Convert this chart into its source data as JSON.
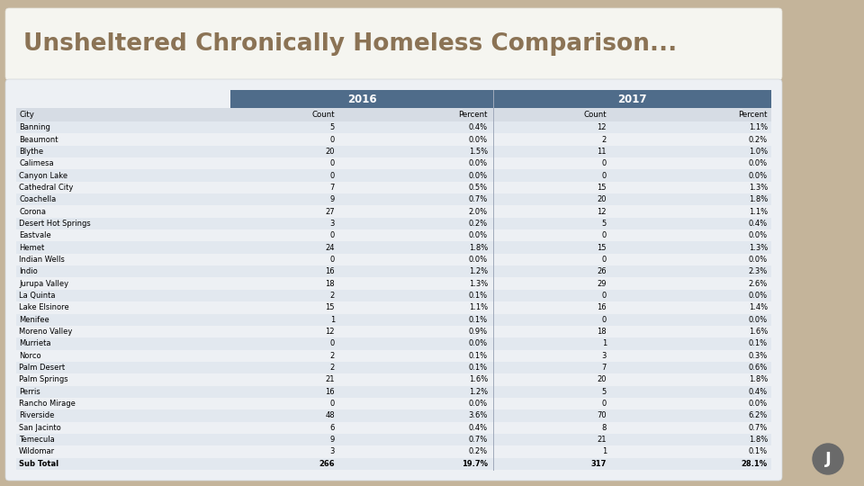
{
  "title": "Unsheltered Chronically Homeless Comparison...",
  "title_color": "#8B7355",
  "background_outer": "#C4B49A",
  "background_inner": "#FFFFFF",
  "table_bg": "#D0D8E2",
  "header_bg": "#4F6C8A",
  "header_text_color": "#FFFFFF",
  "year_headers": [
    "2016",
    "2017"
  ],
  "rows": [
    [
      "Banning",
      "5",
      "0.4%",
      "12",
      "1.1%"
    ],
    [
      "Beaumont",
      "0",
      "0.0%",
      "2",
      "0.2%"
    ],
    [
      "Blythe",
      "20",
      "1.5%",
      "11",
      "1.0%"
    ],
    [
      "Calimesa",
      "0",
      "0.0%",
      "0",
      "0.0%"
    ],
    [
      "Canyon Lake",
      "0",
      "0.0%",
      "0",
      "0.0%"
    ],
    [
      "Cathedral City",
      "7",
      "0.5%",
      "15",
      "1.3%"
    ],
    [
      "Coachella",
      "9",
      "0.7%",
      "20",
      "1.8%"
    ],
    [
      "Corona",
      "27",
      "2.0%",
      "12",
      "1.1%"
    ],
    [
      "Desert Hot Springs",
      "3",
      "0.2%",
      "5",
      "0.4%"
    ],
    [
      "Eastvale",
      "0",
      "0.0%",
      "0",
      "0.0%"
    ],
    [
      "Hemet",
      "24",
      "1.8%",
      "15",
      "1.3%"
    ],
    [
      "Indian Wells",
      "0",
      "0.0%",
      "0",
      "0.0%"
    ],
    [
      "Indio",
      "16",
      "1.2%",
      "26",
      "2.3%"
    ],
    [
      "Jurupa Valley",
      "18",
      "1.3%",
      "29",
      "2.6%"
    ],
    [
      "La Quinta",
      "2",
      "0.1%",
      "0",
      "0.0%"
    ],
    [
      "Lake Elsinore",
      "15",
      "1.1%",
      "16",
      "1.4%"
    ],
    [
      "Menifee",
      "1",
      "0.1%",
      "0",
      "0.0%"
    ],
    [
      "Moreno Valley",
      "12",
      "0.9%",
      "18",
      "1.6%"
    ],
    [
      "Murrieta",
      "0",
      "0.0%",
      "1",
      "0.1%"
    ],
    [
      "Norco",
      "2",
      "0.1%",
      "3",
      "0.3%"
    ],
    [
      "Palm Desert",
      "2",
      "0.1%",
      "7",
      "0.6%"
    ],
    [
      "Palm Springs",
      "21",
      "1.6%",
      "20",
      "1.8%"
    ],
    [
      "Perris",
      "16",
      "1.2%",
      "5",
      "0.4%"
    ],
    [
      "Rancho Mirage",
      "0",
      "0.0%",
      "0",
      "0.0%"
    ],
    [
      "Riverside",
      "48",
      "3.6%",
      "70",
      "6.2%"
    ],
    [
      "San Jacinto",
      "6",
      "0.4%",
      "8",
      "0.7%"
    ],
    [
      "Temecula",
      "9",
      "0.7%",
      "21",
      "1.8%"
    ],
    [
      "Wildomar",
      "3",
      "0.2%",
      "1",
      "0.1%"
    ],
    [
      "Sub Total",
      "266",
      "19.7%",
      "317",
      "28.1%"
    ]
  ]
}
